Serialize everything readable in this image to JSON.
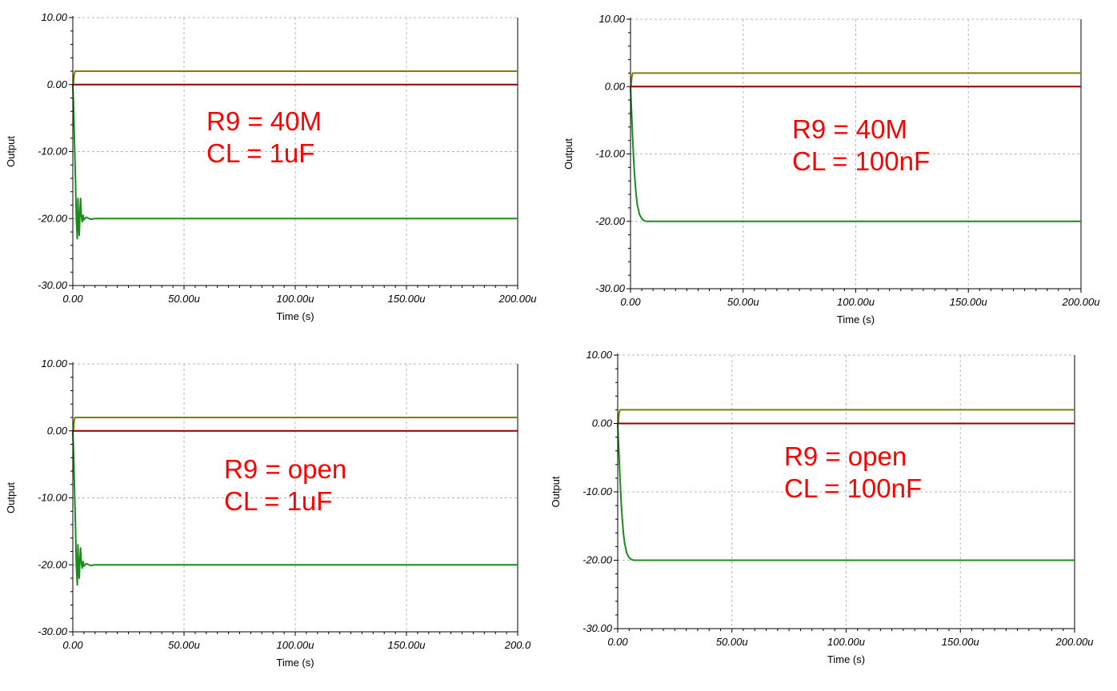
{
  "chart_data": [
    {
      "type": "line",
      "xlabel": "Time (s)",
      "ylabel": "Output",
      "x_ticks": [
        "0.00",
        "50.00u",
        "100.00u",
        "150.00u",
        "200.00u"
      ],
      "y_ticks": [
        "10.00",
        "0.00",
        "-10.00",
        "-20.00",
        "-30.00"
      ],
      "xlim": [
        0,
        200
      ],
      "ylim": [
        -30,
        10
      ],
      "grid": true,
      "annotations": [
        "R9 = 40M",
        "CL = 1uF"
      ],
      "series": [
        {
          "color": "#808000",
          "x": [
            0,
            0.2,
            0.6,
            1.0,
            200
          ],
          "y": [
            0,
            0,
            1.5,
            2,
            2
          ]
        },
        {
          "color": "#8b0000",
          "x": [
            0,
            200
          ],
          "y": [
            0,
            0
          ]
        },
        {
          "color": "#1a8c1a",
          "x": [
            0,
            0.4,
            0.8,
            1.2,
            1.6,
            2.0,
            2.3,
            2.6,
            2.9,
            3.2,
            3.5,
            3.8,
            4.2,
            4.6,
            5.0,
            6.0,
            8.0,
            10.0,
            200
          ],
          "y": [
            0,
            -4,
            -9,
            -14,
            -20,
            -23,
            -17,
            -21,
            -22.5,
            -19,
            -17,
            -19.5,
            -20.5,
            -19.5,
            -20.2,
            -19.8,
            -20.1,
            -20,
            -20
          ]
        }
      ]
    },
    {
      "type": "line",
      "xlabel": "Time (s)",
      "ylabel": "Output",
      "x_ticks": [
        "0.00",
        "50.00u",
        "100.00u",
        "150.00u",
        "200.00u"
      ],
      "y_ticks": [
        "10.00",
        "0.00",
        "-10.00",
        "-20.00",
        "-30.00"
      ],
      "xlim": [
        0,
        200
      ],
      "ylim": [
        -30,
        10
      ],
      "grid": true,
      "annotations": [
        "R9 = 40M",
        "CL = 100nF"
      ],
      "series": [
        {
          "color": "#808000",
          "x": [
            0,
            0.2,
            0.6,
            1.0,
            200
          ],
          "y": [
            0,
            0,
            1.5,
            2,
            2
          ]
        },
        {
          "color": "#8b0000",
          "x": [
            0,
            200
          ],
          "y": [
            0,
            0
          ]
        },
        {
          "color": "#1a8c1a",
          "x": [
            0,
            0.5,
            1.0,
            1.5,
            2.0,
            2.5,
            3.0,
            4.0,
            5.0,
            6.0,
            7.0,
            8.0,
            10.0,
            200
          ],
          "y": [
            0,
            -4,
            -8,
            -11.5,
            -14,
            -16,
            -17.5,
            -19,
            -19.6,
            -19.9,
            -20,
            -20,
            -20,
            -20
          ]
        }
      ]
    },
    {
      "type": "line",
      "xlabel": "Time (s)",
      "ylabel": "Output",
      "x_ticks": [
        "0.00",
        "50.00u",
        "100.00u",
        "150.00u",
        "200.0"
      ],
      "y_ticks": [
        "10.00",
        "0.00",
        "-10.00",
        "-20.00",
        "-30.00"
      ],
      "xlim": [
        0,
        200
      ],
      "ylim": [
        -30,
        10
      ],
      "grid": true,
      "annotations": [
        "R9 = open",
        "CL = 1uF"
      ],
      "series": [
        {
          "color": "#808000",
          "x": [
            0,
            0.2,
            0.6,
            1.0,
            200
          ],
          "y": [
            0,
            0,
            1.5,
            2,
            2
          ]
        },
        {
          "color": "#8b0000",
          "x": [
            0,
            200
          ],
          "y": [
            0,
            0
          ]
        },
        {
          "color": "#1a8c1a",
          "x": [
            0,
            0.4,
            0.8,
            1.2,
            1.6,
            2.0,
            2.3,
            2.6,
            2.9,
            3.2,
            3.5,
            3.8,
            4.2,
            4.6,
            5.0,
            6.0,
            8.0,
            10.0,
            200
          ],
          "y": [
            0,
            -4,
            -9,
            -14,
            -20,
            -23,
            -17,
            -21,
            -22,
            -19,
            -17.5,
            -19.5,
            -20.5,
            -19.5,
            -20.2,
            -19.8,
            -20.1,
            -20,
            -20
          ]
        }
      ]
    },
    {
      "type": "line",
      "xlabel": "Time (s)",
      "ylabel": "Output",
      "x_ticks": [
        "0.00",
        "50.00u",
        "100.00u",
        "150.00u",
        "200.00u"
      ],
      "y_ticks": [
        "10.00",
        "0.00",
        "-10.00",
        "-20.00",
        "-30.00"
      ],
      "xlim": [
        0,
        200
      ],
      "ylim": [
        -30,
        10
      ],
      "grid": true,
      "annotations": [
        "R9 = open",
        "CL = 100nF"
      ],
      "series": [
        {
          "color": "#808000",
          "x": [
            0,
            0.2,
            0.6,
            1.0,
            200
          ],
          "y": [
            0,
            0,
            1.5,
            2,
            2
          ]
        },
        {
          "color": "#8b0000",
          "x": [
            0,
            200
          ],
          "y": [
            0,
            0
          ]
        },
        {
          "color": "#1a8c1a",
          "x": [
            0,
            0.5,
            1.0,
            1.5,
            2.0,
            2.5,
            3.0,
            4.0,
            5.0,
            6.0,
            7.0,
            8.0,
            10.0,
            200
          ],
          "y": [
            0,
            -4,
            -8,
            -11.5,
            -14,
            -16,
            -17.5,
            -19,
            -19.6,
            -19.9,
            -20,
            -20,
            -20,
            -20
          ]
        }
      ]
    }
  ]
}
